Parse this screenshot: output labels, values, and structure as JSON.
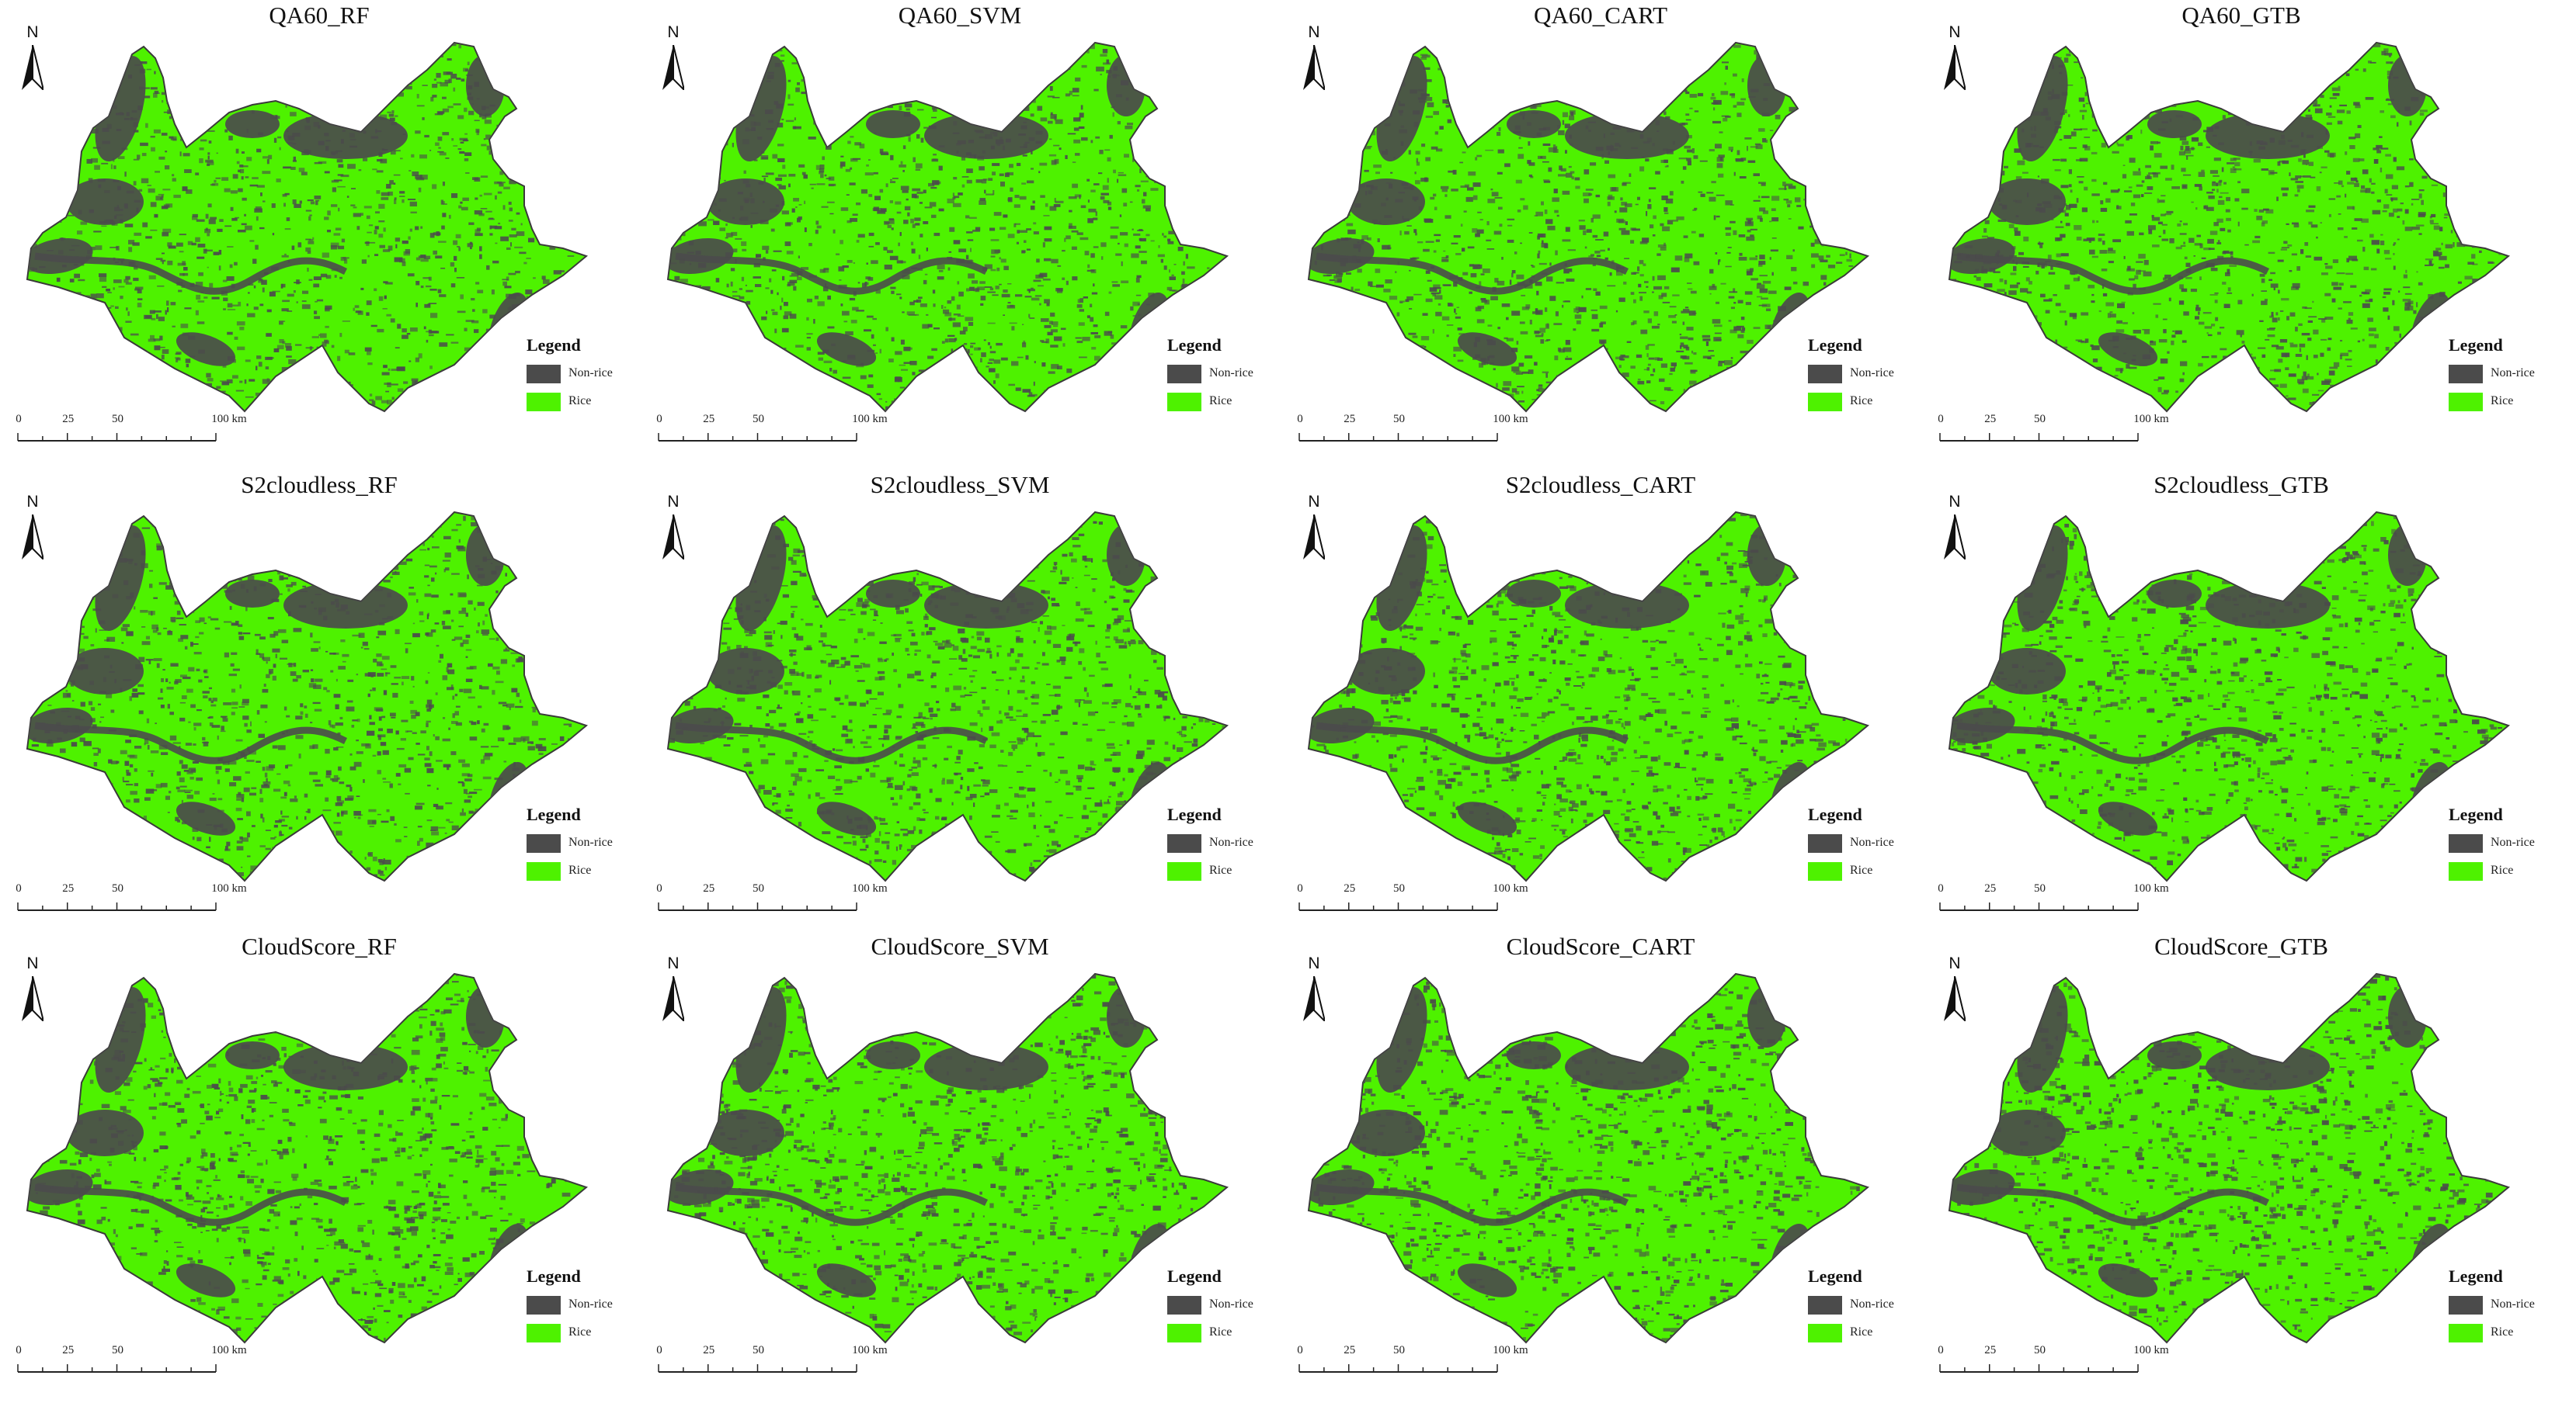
{
  "colors": {
    "rice": "#4ef200",
    "non_rice": "#4b4b4b",
    "background": "#ffffff"
  },
  "common": {
    "north_label": "N",
    "north_icon": "north-arrow-icon",
    "legend_title": "Legend",
    "legend_items": [
      {
        "label": "Non-rice",
        "color": "#4b4b4b"
      },
      {
        "label": "Rice",
        "color": "#4ef200"
      }
    ],
    "scale_labels": [
      "0",
      "25",
      "50",
      "100 km"
    ],
    "scale_values": [
      0,
      25,
      50,
      100
    ]
  },
  "panels": [
    {
      "title": "QA60_RF"
    },
    {
      "title": "QA60_SVM"
    },
    {
      "title": "QA60_CART"
    },
    {
      "title": "QA60_GTB"
    },
    {
      "title": "S2cloudless_RF"
    },
    {
      "title": "S2cloudless_SVM"
    },
    {
      "title": "S2cloudless_CART"
    },
    {
      "title": "S2cloudless_GTB"
    },
    {
      "title": "CloudScore_RF"
    },
    {
      "title": "CloudScore_SVM"
    },
    {
      "title": "CloudScore_CART"
    },
    {
      "title": "CloudScore_GTB"
    }
  ]
}
